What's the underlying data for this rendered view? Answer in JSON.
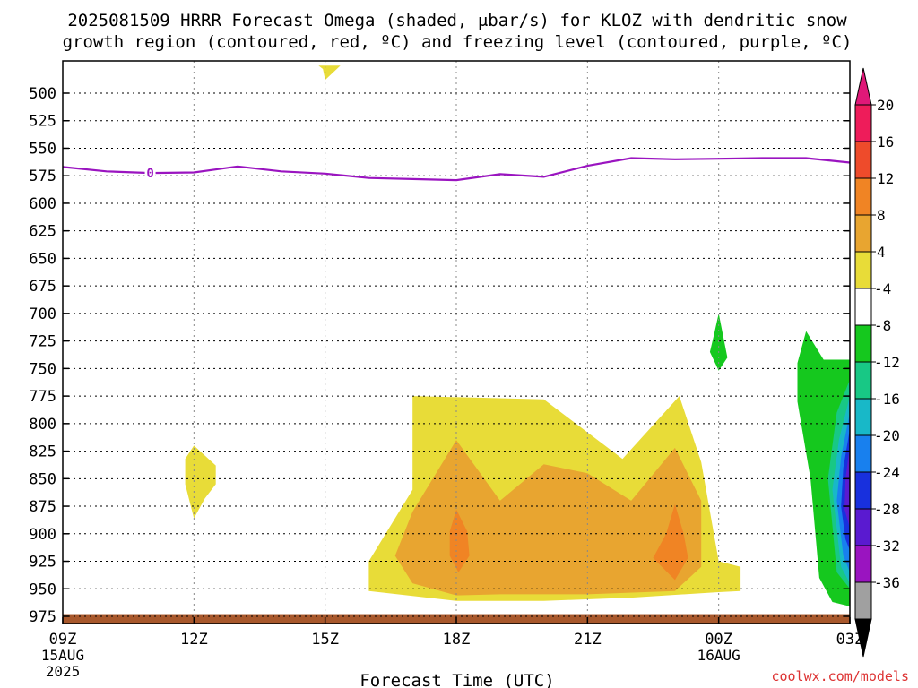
{
  "chart_data": {
    "type": "contour",
    "title_line1": "2025081509 HRRR Forecast Omega (shaded, μbar/s) for KLOZ with dendritic snow",
    "title_line2": "growth region (contoured, red, ºC) and freezing level (contoured, purple, ºC)",
    "xlabel": "Forecast Time (UTC)",
    "x_ticks": [
      {
        "hour": 0,
        "label": "09Z",
        "sub1": "15AUG",
        "sub2": "2025"
      },
      {
        "hour": 3,
        "label": "12Z",
        "sub1": "",
        "sub2": ""
      },
      {
        "hour": 6,
        "label": "15Z",
        "sub1": "",
        "sub2": ""
      },
      {
        "hour": 9,
        "label": "18Z",
        "sub1": "",
        "sub2": ""
      },
      {
        "hour": 12,
        "label": "21Z",
        "sub1": "",
        "sub2": ""
      },
      {
        "hour": 15,
        "label": "00Z",
        "sub1": "16AUG",
        "sub2": ""
      },
      {
        "hour": 18,
        "label": "03Z",
        "sub1": "",
        "sub2": ""
      }
    ],
    "x_range": [
      0,
      18
    ],
    "y_range": [
      475,
      980
    ],
    "y_ticks": [
      500,
      525,
      550,
      575,
      600,
      625,
      650,
      675,
      700,
      725,
      750,
      775,
      800,
      825,
      850,
      875,
      900,
      925,
      950,
      975
    ],
    "grid": true,
    "colorbar_labels": [
      "20",
      "16",
      "12",
      "8",
      "4",
      "-4",
      "-8",
      "-12",
      "-16",
      "-20",
      "-24",
      "-28",
      "-32",
      "-36"
    ],
    "colorbar_colors": [
      "#ee1c5a",
      "#ee4b2b",
      "#f08424",
      "#e8a530",
      "#e8dc38",
      "#ffffff",
      "#15c81e",
      "#18c885",
      "#18b8c8",
      "#1880ee",
      "#1830dd",
      "#5a1ad0",
      "#9a14c0",
      "#a0a0a0"
    ],
    "colorbar_top_arrow_color": "#e01878",
    "colorbar_bottom_arrow_color": "#000000",
    "freezing_level": {
      "color": "#9a14c0",
      "label": "0",
      "points": [
        [
          0,
          567
        ],
        [
          1,
          571
        ],
        [
          2,
          572.5
        ],
        [
          3,
          572
        ],
        [
          4,
          566.5
        ],
        [
          5,
          571
        ],
        [
          6,
          573
        ],
        [
          7,
          577
        ],
        [
          8,
          578
        ],
        [
          9,
          579
        ],
        [
          10,
          573.5
        ],
        [
          11,
          576
        ],
        [
          12,
          566
        ],
        [
          13,
          559
        ],
        [
          14,
          560
        ],
        [
          15,
          559.5
        ],
        [
          16,
          559
        ],
        [
          17,
          559
        ],
        [
          18,
          563
        ]
      ]
    },
    "omega_regions": [
      {
        "name": "yellow-top-blob",
        "value": 4,
        "color": "#e8dc38",
        "points": [
          [
            5.85,
            475
          ],
          [
            6.35,
            475
          ],
          [
            6.0,
            488
          ],
          [
            5.95,
            478
          ]
        ]
      },
      {
        "name": "yellow-left-blob",
        "value": 4,
        "color": "#e8dc38",
        "points": [
          [
            3.0,
            820
          ],
          [
            3.5,
            838
          ],
          [
            3.5,
            855
          ],
          [
            3.25,
            868
          ],
          [
            3.0,
            886
          ],
          [
            2.8,
            855
          ],
          [
            2.8,
            832
          ]
        ]
      },
      {
        "name": "yellow-main-region",
        "value": 4,
        "color": "#e8dc38",
        "points": [
          [
            8.0,
            775
          ],
          [
            11.0,
            778
          ],
          [
            12.8,
            832
          ],
          [
            14.1,
            775
          ],
          [
            14.6,
            835
          ],
          [
            15.0,
            925
          ],
          [
            15.5,
            930
          ],
          [
            15.5,
            952
          ],
          [
            15.0,
            953
          ],
          [
            13.0,
            958
          ],
          [
            11.0,
            961
          ],
          [
            9.0,
            961
          ],
          [
            7.0,
            952
          ],
          [
            7.0,
            925
          ],
          [
            8.0,
            860
          ]
        ]
      },
      {
        "name": "orange-main-region",
        "value": 8,
        "color": "#e8a530",
        "points": [
          [
            9.0,
            815
          ],
          [
            10.0,
            870
          ],
          [
            11.0,
            837
          ],
          [
            12.0,
            845
          ],
          [
            13.0,
            870
          ],
          [
            14.0,
            822
          ],
          [
            14.6,
            870
          ],
          [
            14.6,
            930
          ],
          [
            14.0,
            952
          ],
          [
            12.0,
            955
          ],
          [
            10.0,
            955
          ],
          [
            9.0,
            956
          ],
          [
            8.0,
            945
          ],
          [
            7.6,
            920
          ],
          [
            8.0,
            880
          ]
        ]
      },
      {
        "name": "dark-orange-left",
        "value": 12,
        "color": "#f08424",
        "points": [
          [
            9.0,
            878
          ],
          [
            9.25,
            898
          ],
          [
            9.3,
            920
          ],
          [
            9.05,
            935
          ],
          [
            8.85,
            920
          ],
          [
            8.85,
            898
          ]
        ]
      },
      {
        "name": "dark-orange-right",
        "value": 12,
        "color": "#f08424",
        "points": [
          [
            14.0,
            873
          ],
          [
            14.2,
            900
          ],
          [
            14.3,
            922
          ],
          [
            14.0,
            942
          ],
          [
            13.5,
            922
          ],
          [
            13.8,
            900
          ]
        ]
      },
      {
        "name": "green-small-blob",
        "value": -4,
        "color": "#15c81e",
        "points": [
          [
            15.0,
            700
          ],
          [
            15.2,
            740
          ],
          [
            15.0,
            752
          ],
          [
            14.8,
            735
          ],
          [
            14.9,
            718
          ]
        ]
      },
      {
        "name": "green-right-region",
        "value": -4,
        "color": "#15c81e",
        "points": [
          [
            17.0,
            716
          ],
          [
            17.4,
            742
          ],
          [
            18.0,
            742
          ],
          [
            18.0,
            966
          ],
          [
            17.6,
            962
          ],
          [
            17.3,
            940
          ],
          [
            17.1,
            850
          ],
          [
            16.8,
            780
          ],
          [
            16.8,
            745
          ]
        ]
      },
      {
        "name": "teal-right-region",
        "value": -8,
        "color": "#18c885",
        "points": [
          [
            18.0,
            760
          ],
          [
            17.7,
            790
          ],
          [
            17.5,
            850
          ],
          [
            17.7,
            935
          ],
          [
            18.0,
            950
          ]
        ]
      },
      {
        "name": "cyan-right-region",
        "value": -12,
        "color": "#18b8c8",
        "points": [
          [
            18.0,
            775
          ],
          [
            17.75,
            815
          ],
          [
            17.6,
            860
          ],
          [
            17.8,
            930
          ],
          [
            18.0,
            945
          ]
        ]
      },
      {
        "name": "lightblue-right-region",
        "value": -16,
        "color": "#1880ee",
        "points": [
          [
            18.0,
            790
          ],
          [
            17.8,
            830
          ],
          [
            17.7,
            870
          ],
          [
            17.85,
            920
          ],
          [
            18.0,
            935
          ]
        ]
      },
      {
        "name": "blue-right-region",
        "value": -20,
        "color": "#1830dd",
        "points": [
          [
            18.0,
            805
          ],
          [
            17.85,
            840
          ],
          [
            17.8,
            875
          ],
          [
            17.9,
            905
          ],
          [
            18.0,
            915
          ]
        ]
      },
      {
        "name": "purple-right-region",
        "value": -24,
        "color": "#5a1ad0",
        "points": [
          [
            18.0,
            820
          ],
          [
            17.9,
            850
          ],
          [
            17.88,
            878
          ],
          [
            18.0,
            895
          ]
        ]
      }
    ],
    "terrain": {
      "color": "#a8582c",
      "pressure_top": 973
    }
  },
  "credit": "coolwx.com/models"
}
